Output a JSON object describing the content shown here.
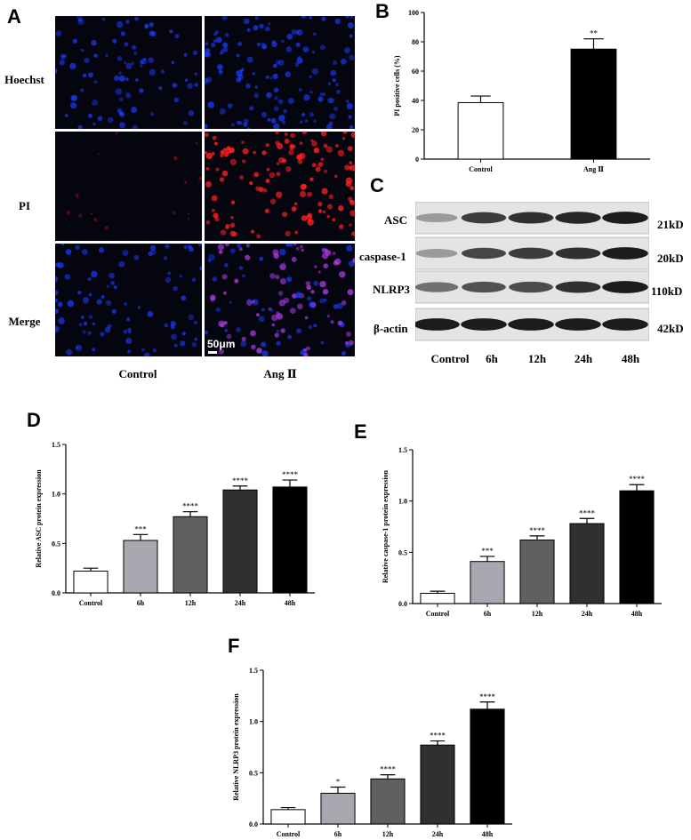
{
  "panels": {
    "A": "A",
    "B": "B",
    "C": "C",
    "D": "D",
    "E": "E",
    "F": "F"
  },
  "panel_a": {
    "rows": [
      "Hoechst",
      "PI",
      "Merge"
    ],
    "columns": [
      "Control",
      "Ang Ⅱ"
    ],
    "scale_bar": "50μm",
    "colors": {
      "hoechst": "#1a3cff",
      "pi": "#ff2020",
      "merge": "#c040ff"
    }
  },
  "panel_c": {
    "proteins": [
      {
        "name": "ASC",
        "kd": "21kD"
      },
      {
        "name": "caspase-1",
        "kd": "20kD"
      },
      {
        "name": "NLRP3",
        "kd": "110kD"
      },
      {
        "name": "β-actin",
        "kd": "42kD"
      }
    ],
    "lanes": [
      "Control",
      "6h",
      "12h",
      "24h",
      "48h"
    ]
  },
  "chart_data": [
    {
      "panel": "B",
      "type": "bar",
      "categories": [
        "Control",
        "Ang Ⅱ"
      ],
      "values": [
        38.5,
        75
      ],
      "errors": [
        4.5,
        7
      ],
      "significance": [
        "",
        "**"
      ],
      "ylabel": "PI positive cells (%)",
      "ylim": [
        0,
        100
      ],
      "yticks": [
        "0",
        "20",
        "40",
        "60",
        "80",
        "100"
      ],
      "colors": [
        "#ffffff",
        "#000000"
      ]
    },
    {
      "panel": "D",
      "type": "bar",
      "categories": [
        "Control",
        "6h",
        "12h",
        "24h",
        "48h"
      ],
      "values": [
        0.22,
        0.53,
        0.77,
        1.04,
        1.07
      ],
      "errors": [
        0.03,
        0.06,
        0.05,
        0.04,
        0.07
      ],
      "significance": [
        "",
        "***",
        "****",
        "****",
        "****"
      ],
      "ylabel": "Relative ASC protein expression",
      "ylim": [
        0,
        1.5
      ],
      "yticks": [
        "0.0",
        "0.5",
        "1.0",
        "1.5"
      ],
      "colors": [
        "#ffffff",
        "#a8a8b0",
        "#606060",
        "#303030",
        "#000000"
      ]
    },
    {
      "panel": "E",
      "type": "bar",
      "categories": [
        "Control",
        "6h",
        "12h",
        "24h",
        "48h"
      ],
      "values": [
        0.1,
        0.41,
        0.62,
        0.78,
        1.1
      ],
      "errors": [
        0.02,
        0.05,
        0.04,
        0.05,
        0.06
      ],
      "significance": [
        "",
        "***",
        "****",
        "****",
        "****"
      ],
      "ylabel": "Relative caspase-1 protein expression",
      "ylim": [
        0,
        1.5
      ],
      "yticks": [
        "0.0",
        "0.5",
        "1.0",
        "1.5"
      ],
      "colors": [
        "#ffffff",
        "#a8a8b0",
        "#606060",
        "#303030",
        "#000000"
      ]
    },
    {
      "panel": "F",
      "type": "bar",
      "categories": [
        "Control",
        "6h",
        "12h",
        "24h",
        "48h"
      ],
      "values": [
        0.14,
        0.3,
        0.44,
        0.77,
        1.12
      ],
      "errors": [
        0.02,
        0.06,
        0.04,
        0.04,
        0.07
      ],
      "significance": [
        "",
        "*",
        "****",
        "****",
        "****"
      ],
      "ylabel": "Relative NLRP3 protein expression",
      "ylim": [
        0,
        1.5
      ],
      "yticks": [
        "0.0",
        "0.5",
        "1.0",
        "1.5"
      ],
      "colors": [
        "#ffffff",
        "#a8a8b0",
        "#606060",
        "#303030",
        "#000000"
      ]
    }
  ]
}
